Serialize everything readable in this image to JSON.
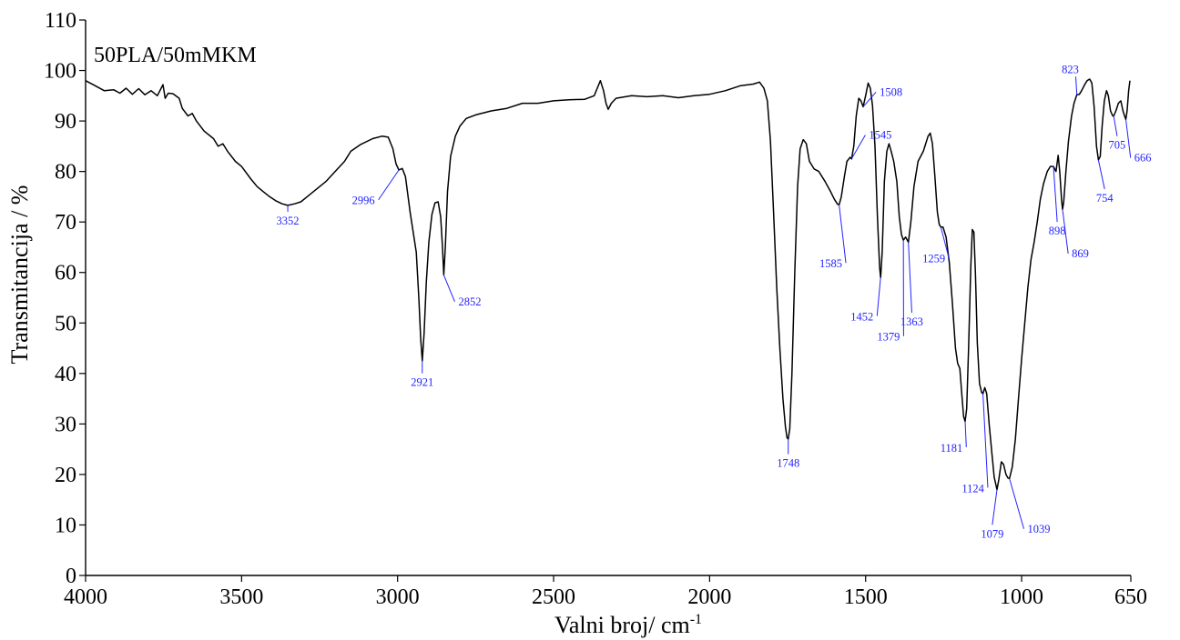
{
  "chart_data": {
    "type": "line",
    "title": "",
    "sample_label": "50PLA/50mMKM",
    "xlabel": "Valni broj/ cm",
    "xlabel_sup": "-1",
    "ylabel": "Transmitancija / %",
    "xlim": [
      4000,
      650
    ],
    "ylim": [
      0,
      110
    ],
    "x_reversed": true,
    "grid": false,
    "x_ticks": [
      4000,
      3500,
      3000,
      2500,
      2000,
      1500,
      1000,
      650
    ],
    "y_ticks": [
      0,
      10,
      20,
      30,
      40,
      50,
      60,
      70,
      80,
      90,
      100,
      110
    ],
    "series": [
      {
        "color": "#000000",
        "points": [
          [
            4000,
            98
          ],
          [
            3970,
            97
          ],
          [
            3940,
            96
          ],
          [
            3910,
            96.2
          ],
          [
            3890,
            95.5
          ],
          [
            3870,
            96.5
          ],
          [
            3850,
            95.3
          ],
          [
            3830,
            96.4
          ],
          [
            3810,
            95.2
          ],
          [
            3790,
            96
          ],
          [
            3770,
            95
          ],
          [
            3752,
            97.2
          ],
          [
            3745,
            94.5
          ],
          [
            3735,
            95.5
          ],
          [
            3720,
            95.4
          ],
          [
            3700,
            94.5
          ],
          [
            3690,
            92.5
          ],
          [
            3672,
            91
          ],
          [
            3658,
            91.5
          ],
          [
            3645,
            90
          ],
          [
            3620,
            88
          ],
          [
            3590,
            86.5
          ],
          [
            3575,
            85
          ],
          [
            3560,
            85.5
          ],
          [
            3545,
            84
          ],
          [
            3520,
            82
          ],
          [
            3500,
            81
          ],
          [
            3470,
            78.5
          ],
          [
            3450,
            77
          ],
          [
            3430,
            76
          ],
          [
            3410,
            75
          ],
          [
            3390,
            74.2
          ],
          [
            3370,
            73.6
          ],
          [
            3352,
            73.3
          ],
          [
            3330,
            73.6
          ],
          [
            3310,
            74
          ],
          [
            3290,
            75
          ],
          [
            3260,
            76.5
          ],
          [
            3230,
            78
          ],
          [
            3200,
            80
          ],
          [
            3170,
            82
          ],
          [
            3150,
            84
          ],
          [
            3120,
            85.3
          ],
          [
            3080,
            86.5
          ],
          [
            3050,
            87
          ],
          [
            3030,
            86.8
          ],
          [
            3015,
            84.5
          ],
          [
            3005,
            81.5
          ],
          [
            2996,
            80.3
          ],
          [
            2985,
            80.6
          ],
          [
            2975,
            79
          ],
          [
            2960,
            72
          ],
          [
            2950,
            68
          ],
          [
            2940,
            64
          ],
          [
            2932,
            55
          ],
          [
            2926,
            47
          ],
          [
            2921,
            42.5
          ],
          [
            2915,
            48
          ],
          [
            2908,
            58
          ],
          [
            2900,
            66
          ],
          [
            2890,
            71.5
          ],
          [
            2880,
            73.8
          ],
          [
            2870,
            74
          ],
          [
            2862,
            71
          ],
          [
            2856,
            65
          ],
          [
            2852,
            59.5
          ],
          [
            2847,
            65
          ],
          [
            2840,
            76
          ],
          [
            2830,
            83
          ],
          [
            2815,
            87
          ],
          [
            2800,
            89
          ],
          [
            2780,
            90.5
          ],
          [
            2750,
            91.2
          ],
          [
            2700,
            92
          ],
          [
            2650,
            92.5
          ],
          [
            2600,
            93.5
          ],
          [
            2550,
            93.5
          ],
          [
            2500,
            94
          ],
          [
            2450,
            94.2
          ],
          [
            2400,
            94.3
          ],
          [
            2370,
            95
          ],
          [
            2360,
            96.5
          ],
          [
            2350,
            98
          ],
          [
            2340,
            96
          ],
          [
            2332,
            93.5
          ],
          [
            2325,
            92.3
          ],
          [
            2315,
            93.5
          ],
          [
            2300,
            94.5
          ],
          [
            2250,
            95
          ],
          [
            2200,
            94.8
          ],
          [
            2150,
            95
          ],
          [
            2100,
            94.6
          ],
          [
            2050,
            95
          ],
          [
            2000,
            95.3
          ],
          [
            1950,
            96
          ],
          [
            1900,
            97
          ],
          [
            1860,
            97.3
          ],
          [
            1840,
            97.7
          ],
          [
            1826,
            96.5
          ],
          [
            1815,
            94
          ],
          [
            1805,
            86
          ],
          [
            1795,
            72
          ],
          [
            1785,
            57
          ],
          [
            1775,
            45
          ],
          [
            1765,
            35
          ],
          [
            1757,
            29.5
          ],
          [
            1752,
            27.3
          ],
          [
            1748,
            27
          ],
          [
            1743,
            29
          ],
          [
            1736,
            40
          ],
          [
            1727,
            60
          ],
          [
            1718,
            77
          ],
          [
            1710,
            84.5
          ],
          [
            1700,
            86.3
          ],
          [
            1690,
            85.5
          ],
          [
            1680,
            82
          ],
          [
            1665,
            80.5
          ],
          [
            1650,
            80
          ],
          [
            1630,
            78
          ],
          [
            1612,
            76
          ],
          [
            1600,
            74.5
          ],
          [
            1590,
            73.5
          ],
          [
            1585,
            73.4
          ],
          [
            1578,
            75
          ],
          [
            1568,
            79
          ],
          [
            1560,
            82
          ],
          [
            1550,
            82.8
          ],
          [
            1545,
            82.5
          ],
          [
            1538,
            85
          ],
          [
            1530,
            91
          ],
          [
            1522,
            94.5
          ],
          [
            1515,
            94
          ],
          [
            1508,
            92.8
          ],
          [
            1500,
            95
          ],
          [
            1492,
            97.5
          ],
          [
            1485,
            96.5
          ],
          [
            1478,
            93
          ],
          [
            1470,
            85
          ],
          [
            1462,
            71
          ],
          [
            1455,
            61
          ],
          [
            1452,
            59
          ],
          [
            1447,
            64
          ],
          [
            1440,
            78
          ],
          [
            1432,
            84
          ],
          [
            1425,
            85.5
          ],
          [
            1418,
            84
          ],
          [
            1410,
            82
          ],
          [
            1400,
            78
          ],
          [
            1392,
            71
          ],
          [
            1385,
            67.5
          ],
          [
            1379,
            66.4
          ],
          [
            1372,
            67
          ],
          [
            1363,
            66
          ],
          [
            1355,
            70
          ],
          [
            1345,
            77
          ],
          [
            1332,
            82
          ],
          [
            1315,
            84
          ],
          [
            1300,
            87
          ],
          [
            1293,
            87.6
          ],
          [
            1286,
            85.5
          ],
          [
            1278,
            79
          ],
          [
            1270,
            72
          ],
          [
            1264,
            69.5
          ],
          [
            1259,
            69
          ],
          [
            1252,
            69
          ],
          [
            1242,
            67
          ],
          [
            1232,
            62
          ],
          [
            1222,
            54
          ],
          [
            1212,
            45
          ],
          [
            1205,
            42
          ],
          [
            1198,
            41
          ],
          [
            1192,
            36
          ],
          [
            1186,
            31.5
          ],
          [
            1181,
            30.5
          ],
          [
            1176,
            33
          ],
          [
            1170,
            45
          ],
          [
            1163,
            61
          ],
          [
            1158,
            68.5
          ],
          [
            1153,
            68
          ],
          [
            1148,
            60
          ],
          [
            1142,
            46
          ],
          [
            1135,
            38
          ],
          [
            1128,
            36.2
          ],
          [
            1124,
            36
          ],
          [
            1118,
            37.2
          ],
          [
            1112,
            36
          ],
          [
            1104,
            30
          ],
          [
            1095,
            24
          ],
          [
            1088,
            19.5
          ],
          [
            1079,
            17
          ],
          [
            1073,
            19
          ],
          [
            1065,
            22.5
          ],
          [
            1058,
            22
          ],
          [
            1050,
            20
          ],
          [
            1044,
            19.3
          ],
          [
            1039,
            19.2
          ],
          [
            1030,
            21.5
          ],
          [
            1020,
            27
          ],
          [
            1010,
            35
          ],
          [
            1000,
            43
          ],
          [
            990,
            50
          ],
          [
            980,
            57
          ],
          [
            970,
            62.5
          ],
          [
            960,
            66
          ],
          [
            950,
            70
          ],
          [
            940,
            74.5
          ],
          [
            930,
            77.5
          ],
          [
            918,
            80
          ],
          [
            908,
            81
          ],
          [
            898,
            81
          ],
          [
            890,
            80
          ],
          [
            883,
            83.2
          ],
          [
            878,
            80
          ],
          [
            872,
            74.5
          ],
          [
            869,
            72.5
          ],
          [
            865,
            74
          ],
          [
            858,
            80
          ],
          [
            850,
            86
          ],
          [
            840,
            91
          ],
          [
            832,
            93.5
          ],
          [
            823,
            95.2
          ],
          [
            815,
            95.3
          ],
          [
            808,
            96
          ],
          [
            798,
            97.2
          ],
          [
            790,
            98
          ],
          [
            782,
            98.3
          ],
          [
            775,
            97.5
          ],
          [
            768,
            93
          ],
          [
            760,
            85
          ],
          [
            754,
            82.3
          ],
          [
            748,
            83
          ],
          [
            742,
            89
          ],
          [
            735,
            94
          ],
          [
            728,
            96
          ],
          [
            722,
            95
          ],
          [
            715,
            92
          ],
          [
            708,
            91
          ],
          [
            705,
            91
          ],
          [
            698,
            92
          ],
          [
            690,
            93.5
          ],
          [
            682,
            94
          ],
          [
            675,
            92
          ],
          [
            670,
            91
          ],
          [
            666,
            90.3
          ],
          [
            662,
            92
          ],
          [
            657,
            96
          ],
          [
            653,
            98
          ]
        ]
      }
    ],
    "annotations": [
      {
        "label": "3352",
        "peak_x": 3352,
        "peak_y": 73.3,
        "text_x": 3352,
        "text_y": 69.5,
        "side": "below"
      },
      {
        "label": "2996",
        "peak_x": 2996,
        "peak_y": 80.3,
        "text_x": 3108,
        "text_y": 73.5,
        "side": "left"
      },
      {
        "label": "2921",
        "peak_x": 2921,
        "peak_y": 42.5,
        "text_x": 2921,
        "text_y": 37.5,
        "side": "below"
      },
      {
        "label": "2852",
        "peak_x": 2852,
        "peak_y": 59.5,
        "text_x": 2776,
        "text_y": 53.5,
        "side": "right"
      },
      {
        "label": "1748",
        "peak_x": 1748,
        "peak_y": 27,
        "text_x": 1748,
        "text_y": 21.5,
        "side": "below"
      },
      {
        "label": "1585",
        "peak_x": 1585,
        "peak_y": 73.4,
        "text_x": 1610,
        "text_y": 61,
        "side": "left"
      },
      {
        "label": "1545",
        "peak_x": 1545,
        "peak_y": 82.5,
        "text_x": 1460,
        "text_y": 86.5,
        "side": "right"
      },
      {
        "label": "1508",
        "peak_x": 1508,
        "peak_y": 92.8,
        "text_x": 1426,
        "text_y": 95,
        "side": "right"
      },
      {
        "label": "1452",
        "peak_x": 1452,
        "peak_y": 59,
        "text_x": 1510,
        "text_y": 50.5,
        "side": "left"
      },
      {
        "label": "1379",
        "peak_x": 1379,
        "peak_y": 66.4,
        "text_x": 1425,
        "text_y": 46.5,
        "side": "left"
      },
      {
        "label": "1363",
        "peak_x": 1363,
        "peak_y": 66,
        "text_x": 1352,
        "text_y": 49.5,
        "side": "below"
      },
      {
        "label": "1259",
        "peak_x": 1259,
        "peak_y": 69,
        "text_x": 1280,
        "text_y": 62,
        "side": "left"
      },
      {
        "label": "1181",
        "peak_x": 1181,
        "peak_y": 30.5,
        "text_x": 1224,
        "text_y": 24.5,
        "side": "left"
      },
      {
        "label": "1124",
        "peak_x": 1124,
        "peak_y": 36,
        "text_x": 1155,
        "text_y": 16.5,
        "side": "left"
      },
      {
        "label": "1079",
        "peak_x": 1079,
        "peak_y": 17,
        "text_x": 1094,
        "text_y": 7.5,
        "side": "below"
      },
      {
        "label": "1039",
        "peak_x": 1039,
        "peak_y": 19.2,
        "text_x": 952,
        "text_y": 8.5,
        "side": "right"
      },
      {
        "label": "898",
        "peak_x": 898,
        "peak_y": 81,
        "text_x": 886,
        "text_y": 67.5,
        "side": "below"
      },
      {
        "label": "869",
        "peak_x": 869,
        "peak_y": 72.5,
        "text_x": 810,
        "text_y": 63,
        "side": "right"
      },
      {
        "label": "823",
        "peak_x": 823,
        "peak_y": 95.2,
        "text_x": 844,
        "text_y": 99.5,
        "side": "above"
      },
      {
        "label": "754",
        "peak_x": 754,
        "peak_y": 82.3,
        "text_x": 734,
        "text_y": 74,
        "side": "below"
      },
      {
        "label": "705",
        "peak_x": 705,
        "peak_y": 91,
        "text_x": 694,
        "text_y": 84.5,
        "side": "below"
      },
      {
        "label": "666",
        "peak_x": 666,
        "peak_y": 90.3,
        "text_x": 610,
        "text_y": 82,
        "side": "right"
      }
    ]
  }
}
